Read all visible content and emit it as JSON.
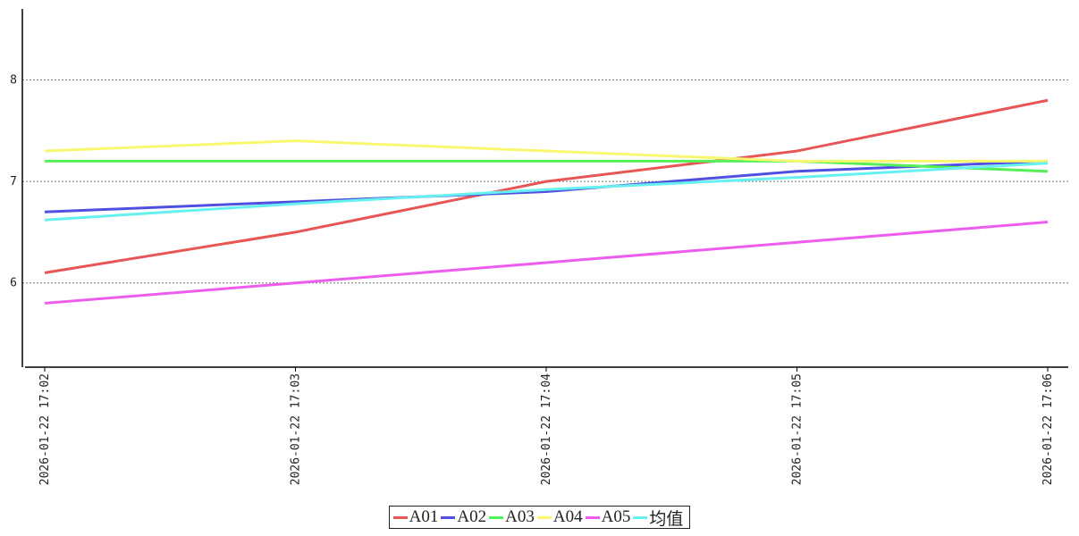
{
  "chart_data": {
    "type": "line",
    "categories": [
      "2026-01-22 17:02",
      "2026-01-22 17:03",
      "2026-01-22 17:04",
      "2026-01-22 17:05",
      "2026-01-22 17:06"
    ],
    "series": [
      {
        "name": "A01",
        "color": "#e85555",
        "values": [
          6.1,
          6.5,
          7.0,
          7.3,
          7.8
        ]
      },
      {
        "name": "A02",
        "color": "#5050e0",
        "values": [
          6.7,
          6.8,
          6.9,
          7.1,
          7.2
        ]
      },
      {
        "name": "A03",
        "color": "#55f055",
        "values": [
          7.2,
          7.2,
          7.2,
          7.2,
          7.1
        ]
      },
      {
        "name": "A04",
        "color": "#f8f870",
        "values": [
          7.3,
          7.4,
          7.3,
          7.2,
          7.2
        ]
      },
      {
        "name": "A05",
        "color": "#ee5cee",
        "values": [
          5.8,
          6.0,
          6.2,
          6.4,
          6.6
        ]
      },
      {
        "name": "均值",
        "color": "#66f0f0",
        "values": [
          6.62,
          6.78,
          6.92,
          7.04,
          7.18
        ]
      }
    ],
    "ylim": [
      5.17,
      8.7
    ],
    "yticks": [
      6,
      7,
      8
    ],
    "grid": true,
    "legend": "bottom"
  }
}
